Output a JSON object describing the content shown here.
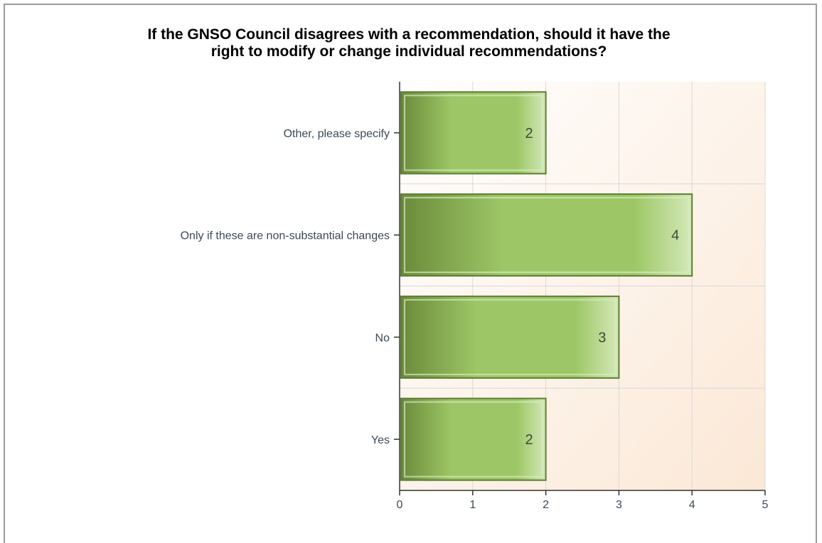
{
  "chart_data": {
    "type": "bar",
    "orientation": "horizontal",
    "title_lines": [
      "If the GNSO Council disagrees with a recommendation, should it have the",
      "right to modify or change individual recommendations?"
    ],
    "categories": [
      "Other, please specify",
      "Only if these are non-substantial changes",
      "No",
      "Yes"
    ],
    "values": [
      2,
      4,
      3,
      2
    ],
    "data_labels": [
      "2",
      "4",
      "3",
      "2"
    ],
    "xlim": [
      0,
      5
    ],
    "x_ticks": [
      "0",
      "1",
      "2",
      "3",
      "4",
      "5"
    ],
    "grid": true,
    "legend": "none"
  },
  "colors": {
    "bar_dark": "#6b8a3a",
    "bar_mid": "#9dc766",
    "bar_light": "#d4e8b8",
    "bar_border": "#5f7d33",
    "plot_bg_top": "#ffffff",
    "plot_bg_bottom": "#fbe8d6",
    "grid": "#d8d8d8",
    "axis": "#333333"
  }
}
